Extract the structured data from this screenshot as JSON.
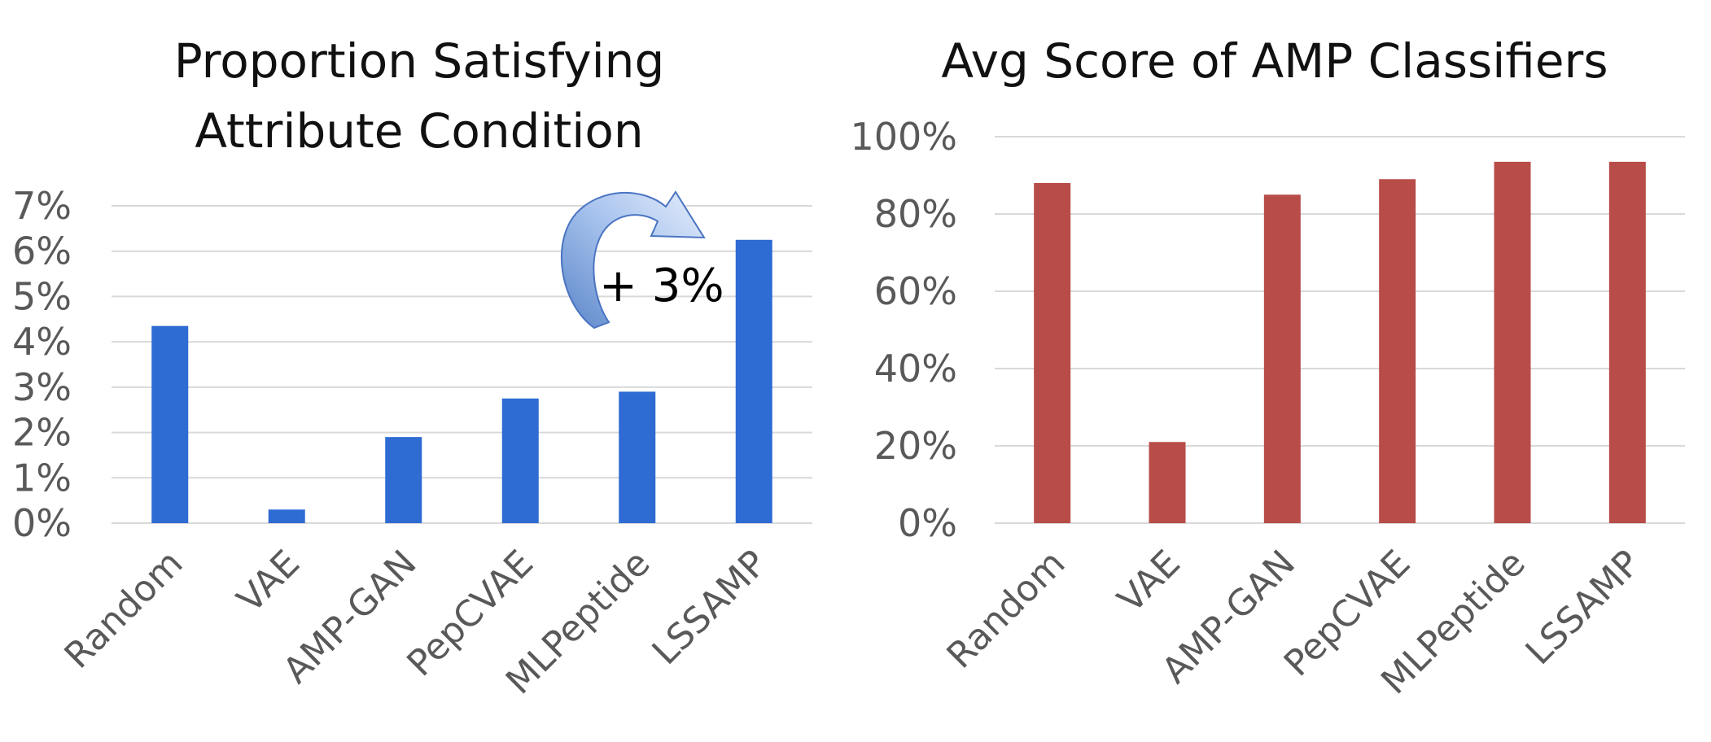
{
  "chart_data": [
    {
      "type": "bar",
      "title_lines": [
        "Proportion Satisfying",
        "Attribute Condition"
      ],
      "categories": [
        "Random",
        "VAE",
        "AMP-GAN",
        "PepCVAE",
        "MLPeptide",
        "LSSAMP"
      ],
      "values": [
        4.35,
        0.3,
        1.9,
        2.75,
        2.9,
        6.25
      ],
      "unit": "%",
      "ylim": [
        0,
        7
      ],
      "yticks": [
        "0%",
        "1%",
        "2%",
        "3%",
        "4%",
        "5%",
        "6%",
        "7%"
      ],
      "grid": true,
      "legend": "none",
      "color": "#2E6BD3",
      "annotation": "+ 3%"
    },
    {
      "type": "bar",
      "title_lines": [
        "Avg Score of AMP Classifiers"
      ],
      "categories": [
        "Random",
        "VAE",
        "AMP-GAN",
        "PepCVAE",
        "MLPeptide",
        "LSSAMP"
      ],
      "values": [
        88,
        21,
        85,
        89,
        93.5,
        93.5
      ],
      "unit": "%",
      "ylim": [
        0,
        100
      ],
      "yticks": [
        "0%",
        "20%",
        "40%",
        "60%",
        "80%",
        "100%"
      ],
      "grid": true,
      "legend": "none",
      "color": "#B84C48"
    }
  ]
}
